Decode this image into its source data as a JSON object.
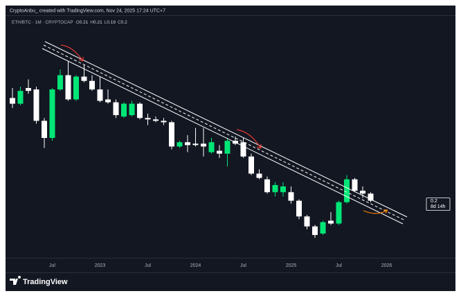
{
  "header": {
    "attribution": "CryptoAnbu_ created with TradingView.com, Nov 24, 2025 17:24 UTC+7"
  },
  "chart_data": {
    "type": "candlestick",
    "symbol": "ETH/BTC · 1M · CRYPTOCAP",
    "ohlc_legend": [
      {
        "label": "O",
        "value": 0.21
      },
      {
        "label": "H",
        "value": 0.21
      },
      {
        "label": "L",
        "value": 0.19
      },
      {
        "label": "C",
        "value": 0.2
      }
    ],
    "categories": [
      null,
      null,
      null,
      null,
      null,
      "Jul",
      null,
      null,
      null,
      null,
      null,
      "2023",
      null,
      null,
      null,
      null,
      null,
      "Jul",
      null,
      null,
      null,
      null,
      null,
      "2024",
      null,
      null,
      null,
      null,
      null,
      "Jul",
      null,
      null,
      null,
      null,
      null,
      "2025",
      null,
      null,
      null,
      null,
      null,
      "Jul",
      null,
      null,
      null,
      null,
      null,
      "2026"
    ],
    "open": [
      0.272,
      0.268,
      0.279,
      0.278,
      0.256,
      0.244,
      0.278,
      0.288,
      0.271,
      0.287,
      0.284,
      0.278,
      0.271,
      0.269,
      0.259,
      0.26,
      0.268,
      0.258,
      0.257,
      0.256,
      0.255,
      0.238,
      0.241,
      0.24,
      0.24,
      0.234,
      0.235,
      0.233,
      0.242,
      0.241,
      0.231,
      0.219,
      0.215,
      0.206,
      0.206,
      0.206,
      0.2,
      0.189,
      0.182,
      0.177,
      0.186,
      0.184,
      0.199,
      0.215,
      0.207,
      0.205,
      null,
      null
    ],
    "high": [
      0.279,
      0.28,
      0.285,
      0.28,
      0.258,
      0.279,
      0.292,
      0.298,
      0.288,
      0.295,
      0.288,
      0.287,
      0.278,
      0.271,
      0.269,
      0.27,
      0.269,
      0.261,
      0.259,
      0.258,
      0.256,
      0.242,
      0.246,
      0.251,
      0.251,
      0.244,
      0.239,
      0.244,
      0.245,
      0.244,
      0.233,
      0.222,
      0.217,
      0.213,
      0.213,
      0.21,
      0.201,
      0.19,
      0.183,
      0.186,
      0.192,
      0.2,
      0.218,
      0.216,
      0.21,
      0.206,
      null,
      null
    ],
    "low": [
      0.265,
      0.267,
      0.275,
      0.254,
      0.237,
      0.242,
      0.277,
      0.27,
      0.27,
      0.283,
      0.277,
      0.269,
      0.268,
      0.258,
      0.258,
      0.259,
      0.257,
      0.253,
      0.255,
      0.253,
      0.236,
      0.237,
      0.234,
      0.238,
      0.231,
      0.233,
      0.23,
      0.224,
      0.239,
      0.23,
      0.218,
      0.215,
      0.205,
      0.203,
      0.203,
      0.198,
      0.187,
      0.18,
      0.174,
      0.176,
      0.183,
      0.183,
      0.198,
      0.206,
      0.202,
      0.199,
      null,
      null
    ],
    "close": [
      0.268,
      0.277,
      0.277,
      0.256,
      0.244,
      0.278,
      0.288,
      0.271,
      0.287,
      0.284,
      0.278,
      0.27,
      0.269,
      0.26,
      0.268,
      0.268,
      0.258,
      0.257,
      0.256,
      0.255,
      0.238,
      0.241,
      0.239,
      0.239,
      0.238,
      0.241,
      0.233,
      0.242,
      0.24,
      0.231,
      0.219,
      0.216,
      0.206,
      0.211,
      0.21,
      0.2,
      0.189,
      0.182,
      0.176,
      0.185,
      0.184,
      0.199,
      0.215,
      0.207,
      0.205,
      0.2,
      null,
      null
    ],
    "up_color": "#00e676",
    "down_color": "#ffffff",
    "ylim": [
      0.16,
      0.33
    ],
    "last_price": 0.2,
    "countdown": "8d 14h"
  },
  "footer": {
    "brand": "TradingView"
  }
}
